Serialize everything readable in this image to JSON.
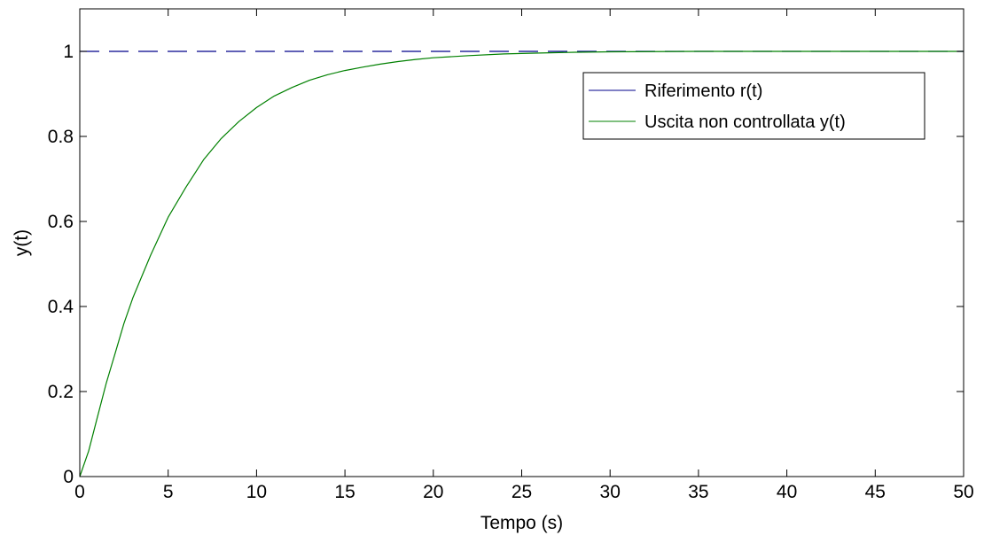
{
  "chart_data": {
    "type": "line",
    "title": "",
    "xlabel": "Tempo (s)",
    "ylabel": "y(t)",
    "xlim": [
      0,
      50
    ],
    "ylim": [
      0,
      1.1
    ],
    "grid": false,
    "legend_position": "top-right",
    "x_ticks": [
      0,
      5,
      10,
      15,
      20,
      25,
      30,
      35,
      40,
      45,
      50
    ],
    "x_tick_labels": [
      "0",
      "5",
      "10",
      "15",
      "20",
      "25",
      "30",
      "35",
      "40",
      "45",
      "50"
    ],
    "y_ticks": [
      0,
      0.2,
      0.4,
      0.6,
      0.8,
      1
    ],
    "y_tick_labels": [
      "0",
      "0.2",
      "0.4",
      "0.6",
      "0.8",
      "1"
    ],
    "series": [
      {
        "name": "Riferimento r(t)",
        "color": "#00008b",
        "style": "dashed",
        "x": [
          0,
          50
        ],
        "y": [
          1,
          1
        ]
      },
      {
        "name": "Uscita non controllata y(t)",
        "color": "#008000",
        "style": "solid",
        "x": [
          0,
          0.5,
          1,
          1.5,
          2,
          2.5,
          3,
          4,
          5,
          6,
          7,
          8,
          9,
          10,
          11,
          12,
          13,
          14,
          15,
          16,
          17,
          18,
          19,
          20,
          22,
          24,
          26,
          28,
          30,
          35,
          40,
          45,
          50
        ],
        "y": [
          0,
          0.06,
          0.14,
          0.22,
          0.29,
          0.36,
          0.42,
          0.52,
          0.61,
          0.68,
          0.745,
          0.795,
          0.835,
          0.868,
          0.895,
          0.915,
          0.932,
          0.945,
          0.955,
          0.963,
          0.97,
          0.976,
          0.981,
          0.985,
          0.99,
          0.994,
          0.996,
          0.998,
          0.999,
          1,
          1,
          1,
          1
        ]
      }
    ]
  }
}
